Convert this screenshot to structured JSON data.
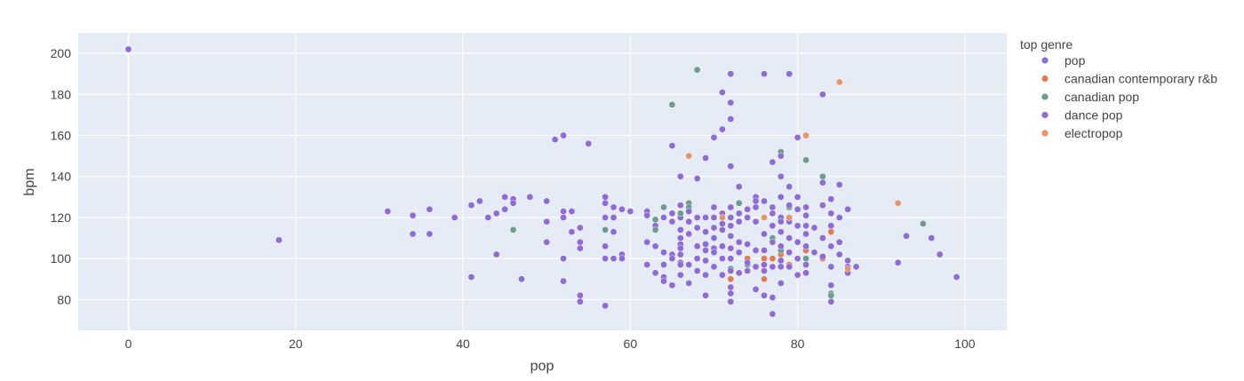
{
  "chart_data": {
    "type": "scatter",
    "xlabel": "pop",
    "ylabel": "bpm",
    "xlim": [
      -6,
      105
    ],
    "ylim": [
      65,
      210
    ],
    "xticks": [
      0,
      20,
      40,
      60,
      80,
      100
    ],
    "yticks": [
      80,
      100,
      120,
      140,
      160,
      180,
      200
    ],
    "grid": true,
    "legend_placement": "right",
    "legend_title": "top genre",
    "series": [
      {
        "name": "pop",
        "color": "#8e6bd6",
        "points": [
          [
            0,
            202
          ],
          [
            18,
            109
          ],
          [
            31,
            123
          ],
          [
            34,
            121
          ],
          [
            34,
            112
          ],
          [
            36,
            124
          ],
          [
            36,
            112
          ],
          [
            39,
            120
          ],
          [
            41,
            91
          ],
          [
            41,
            126
          ],
          [
            42,
            128
          ],
          [
            43,
            120
          ],
          [
            44,
            122
          ],
          [
            44,
            102
          ],
          [
            45,
            130
          ],
          [
            45,
            124
          ],
          [
            46,
            129
          ],
          [
            46,
            127
          ],
          [
            47,
            90
          ],
          [
            48,
            130
          ],
          [
            50,
            128
          ],
          [
            50,
            118
          ],
          [
            50,
            108
          ],
          [
            51,
            158
          ],
          [
            52,
            160
          ],
          [
            52,
            123
          ],
          [
            52,
            120
          ],
          [
            52,
            100
          ],
          [
            52,
            89
          ],
          [
            53,
            123
          ],
          [
            53,
            113
          ],
          [
            54,
            115
          ],
          [
            54,
            108
          ],
          [
            54,
            105
          ],
          [
            54,
            82
          ],
          [
            54,
            79
          ],
          [
            55,
            156
          ],
          [
            57,
            130
          ],
          [
            57,
            127
          ],
          [
            57,
            120
          ],
          [
            57,
            106
          ],
          [
            57,
            100
          ],
          [
            57,
            77
          ],
          [
            58,
            125
          ],
          [
            58,
            120
          ],
          [
            58,
            113
          ],
          [
            58,
            100
          ],
          [
            59,
            124
          ],
          [
            59,
            102
          ],
          [
            59,
            100
          ],
          [
            60,
            123
          ],
          [
            62,
            123
          ],
          [
            62,
            121
          ],
          [
            62,
            108
          ],
          [
            62,
            97
          ],
          [
            63,
            116
          ],
          [
            63,
            106
          ],
          [
            63,
            93
          ],
          [
            64,
            120
          ],
          [
            64,
            103
          ],
          [
            64,
            97
          ],
          [
            64,
            91
          ],
          [
            64,
            89
          ],
          [
            65,
            155
          ],
          [
            65,
            122
          ],
          [
            65,
            118
          ],
          [
            65,
            102
          ],
          [
            65,
            100
          ],
          [
            65,
            87
          ],
          [
            66,
            140
          ],
          [
            66,
            126
          ],
          [
            66,
            120
          ],
          [
            66,
            114
          ],
          [
            66,
            110
          ],
          [
            66,
            107
          ],
          [
            66,
            105
          ],
          [
            66,
            102
          ],
          [
            66,
            98
          ],
          [
            66,
            97
          ],
          [
            66,
            92
          ]
        ]
      },
      {
        "name": "canadian contemporary r&b",
        "color": "#e07b54",
        "points": [
          [
            67,
            150
          ],
          [
            68,
            120
          ],
          [
            71,
            181
          ],
          [
            72,
            90
          ],
          [
            74,
            100
          ],
          [
            76,
            120
          ],
          [
            76,
            100
          ],
          [
            76,
            90
          ],
          [
            77,
            100
          ],
          [
            78,
            104
          ],
          [
            78,
            102
          ],
          [
            79,
            120
          ],
          [
            79,
            97
          ],
          [
            81,
            160
          ],
          [
            81,
            104
          ],
          [
            83,
            100
          ],
          [
            84,
            113
          ],
          [
            85,
            186
          ],
          [
            86,
            95
          ],
          [
            92,
            127
          ]
        ]
      },
      {
        "name": "canadian pop",
        "color": "#6d9c8c",
        "points": [
          [
            46,
            114
          ],
          [
            57,
            114
          ],
          [
            63,
            119
          ],
          [
            63,
            114
          ],
          [
            64,
            125
          ],
          [
            65,
            175
          ],
          [
            66,
            122
          ],
          [
            67,
            127
          ],
          [
            67,
            125
          ],
          [
            68,
            192
          ],
          [
            72,
            95
          ],
          [
            73,
            127
          ],
          [
            74,
            97
          ],
          [
            77,
            110
          ],
          [
            78,
            152
          ],
          [
            78,
            150
          ],
          [
            78,
            104
          ],
          [
            79,
            125
          ],
          [
            81,
            148
          ],
          [
            81,
            100
          ],
          [
            83,
            140
          ],
          [
            84,
            83
          ],
          [
            84,
            82
          ],
          [
            95,
            117
          ]
        ]
      },
      {
        "name": "dance pop",
        "color": "#8e6bd6",
        "points": [
          [
            67,
            123
          ],
          [
            67,
            118
          ],
          [
            67,
            112
          ],
          [
            67,
            97
          ],
          [
            67,
            88
          ],
          [
            68,
            139
          ],
          [
            68,
            120
          ],
          [
            68,
            115
          ],
          [
            68,
            106
          ],
          [
            68,
            100
          ],
          [
            68,
            94
          ],
          [
            69,
            149
          ],
          [
            69,
            120
          ],
          [
            69,
            113
          ],
          [
            69,
            107
          ],
          [
            69,
            104
          ],
          [
            69,
            99
          ],
          [
            69,
            92
          ],
          [
            69,
            82
          ],
          [
            70,
            159
          ],
          [
            70,
            125
          ],
          [
            70,
            120
          ],
          [
            70,
            115
          ],
          [
            70,
            110
          ],
          [
            70,
            105
          ],
          [
            70,
            103
          ],
          [
            70,
            96
          ],
          [
            71,
            163
          ],
          [
            71,
            181
          ],
          [
            71,
            122
          ],
          [
            71,
            117
          ],
          [
            71,
            114
          ],
          [
            71,
            106
          ],
          [
            71,
            100
          ],
          [
            71,
            92
          ],
          [
            72,
            190
          ],
          [
            72,
            176
          ],
          [
            72,
            168
          ],
          [
            72,
            145
          ],
          [
            72,
            125
          ],
          [
            72,
            120
          ],
          [
            72,
            116
          ],
          [
            72,
            111
          ],
          [
            72,
            105
          ],
          [
            72,
            100
          ],
          [
            72,
            94
          ],
          [
            72,
            86
          ],
          [
            72,
            83
          ],
          [
            72,
            79
          ],
          [
            73,
            135
          ],
          [
            73,
            122
          ],
          [
            73,
            118
          ],
          [
            73,
            108
          ],
          [
            73,
            103
          ],
          [
            73,
            93
          ],
          [
            74,
            124
          ],
          [
            74,
            120
          ],
          [
            74,
            107
          ],
          [
            74,
            98
          ],
          [
            74,
            94
          ],
          [
            75,
            130
          ],
          [
            75,
            128
          ],
          [
            75,
            125
          ],
          [
            75,
            118
          ],
          [
            75,
            104
          ],
          [
            75,
            96
          ],
          [
            75,
            85
          ],
          [
            76,
            190
          ],
          [
            76,
            128
          ],
          [
            76,
            112
          ],
          [
            76,
            104
          ],
          [
            76,
            97
          ],
          [
            76,
            94
          ],
          [
            76,
            82
          ],
          [
            77,
            147
          ],
          [
            77,
            125
          ],
          [
            77,
            122
          ],
          [
            77,
            116
          ],
          [
            77,
            108
          ],
          [
            77,
            96
          ],
          [
            77,
            81
          ],
          [
            77,
            73
          ],
          [
            78,
            150
          ],
          [
            78,
            140
          ],
          [
            78,
            130
          ],
          [
            78,
            120
          ],
          [
            78,
            118
          ],
          [
            78,
            113
          ],
          [
            78,
            106
          ],
          [
            78,
            99
          ],
          [
            78,
            96
          ],
          [
            78,
            88
          ],
          [
            79,
            190
          ],
          [
            79,
            135
          ],
          [
            79,
            126
          ],
          [
            79,
            118
          ],
          [
            79,
            110
          ],
          [
            79,
            103
          ],
          [
            79,
            96
          ],
          [
            80,
            159
          ],
          [
            80,
            130
          ],
          [
            80,
            124
          ],
          [
            80,
            116
          ],
          [
            80,
            108
          ],
          [
            80,
            100
          ],
          [
            80,
            92
          ],
          [
            81,
            125
          ],
          [
            81,
            121
          ],
          [
            81,
            116
          ],
          [
            81,
            112
          ],
          [
            81,
            106
          ],
          [
            81,
            97
          ],
          [
            81,
            93
          ],
          [
            82,
            115
          ],
          [
            82,
            103
          ],
          [
            83,
            137
          ],
          [
            83,
            180
          ],
          [
            83,
            126
          ],
          [
            83,
            110
          ],
          [
            83,
            101
          ],
          [
            84,
            129
          ],
          [
            84,
            122
          ],
          [
            84,
            116
          ],
          [
            84,
            106
          ],
          [
            84,
            96
          ],
          [
            84,
            87
          ],
          [
            84,
            79
          ],
          [
            85,
            136
          ],
          [
            85,
            120
          ],
          [
            85,
            108
          ],
          [
            85,
            102
          ],
          [
            86,
            124
          ],
          [
            86,
            99
          ],
          [
            86,
            96
          ],
          [
            86,
            93
          ],
          [
            87,
            96
          ],
          [
            92,
            98
          ],
          [
            93,
            111
          ],
          [
            96,
            110
          ],
          [
            97,
            102
          ],
          [
            99,
            91
          ]
        ]
      },
      {
        "name": "electropop",
        "color": "#e8946a",
        "points": [
          [
            67,
            150
          ],
          [
            71,
            120
          ],
          [
            76,
            120
          ],
          [
            79,
            120
          ],
          [
            81,
            160
          ],
          [
            85,
            186
          ],
          [
            86,
            95
          ],
          [
            92,
            127
          ]
        ]
      }
    ]
  }
}
